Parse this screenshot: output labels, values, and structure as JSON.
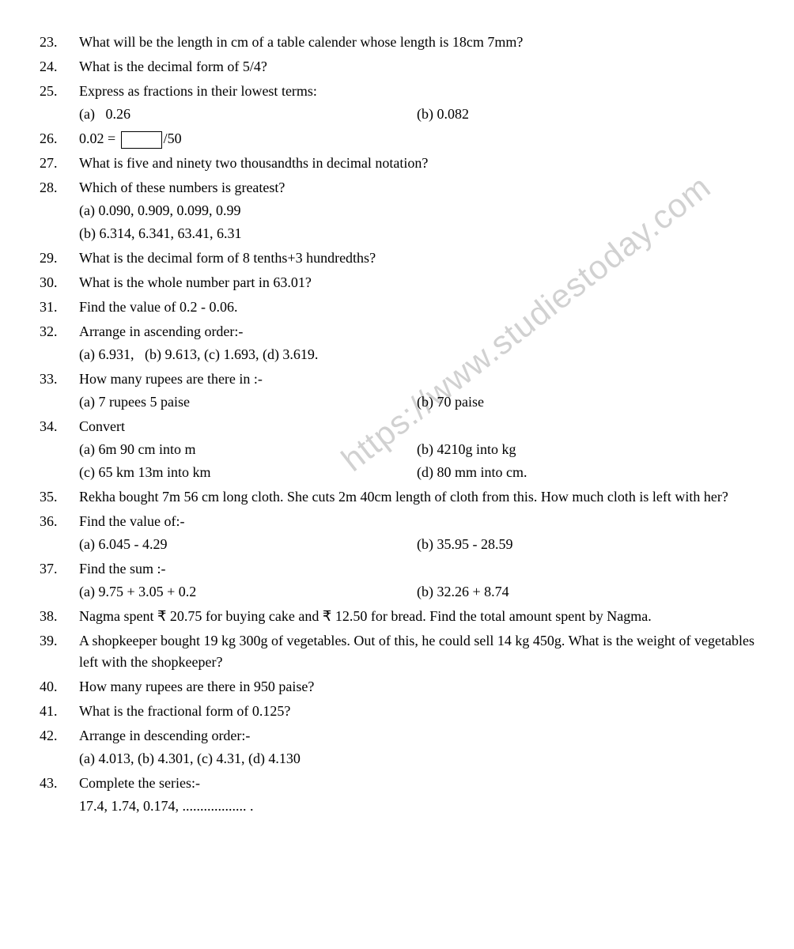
{
  "watermark": "https://www.studiestoday.com",
  "questions": [
    {
      "num": "23.",
      "text": "What will be the length in cm of a table calender whose length is 18cm 7mm?"
    },
    {
      "num": "24.",
      "text": "What is the decimal form of 5/4?"
    },
    {
      "num": "25.",
      "text": "Express as fractions in their lowest terms:",
      "parts_cols": [
        {
          "a": "(a)   0.26",
          "b": "(b) 0.082"
        }
      ]
    },
    {
      "num": "26.",
      "special": "box",
      "pre": "0.02 = ",
      "post": "/50"
    },
    {
      "num": "27.",
      "text": "What is five and ninety two thousandths in decimal notation?"
    },
    {
      "num": "28.",
      "text": "Which of these numbers is greatest?",
      "parts": [
        "(a) 0.090, 0.909, 0.099, 0.99",
        "(b) 6.314, 6.341, 63.41, 6.31"
      ]
    },
    {
      "num": "29.",
      "text": "What is the decimal form of 8 tenths+3 hundredths?"
    },
    {
      "num": "30.",
      "text": "What is the whole number part in 63.01?"
    },
    {
      "num": "31.",
      "text": "Find the value of 0.2 - 0.06."
    },
    {
      "num": "32.",
      "text": "Arrange in ascending order:-",
      "parts": [
        "(a) 6.931,   (b) 9.613, (c) 1.693, (d) 3.619."
      ]
    },
    {
      "num": "33.",
      "text": "How many rupees are there in :-",
      "parts_cols": [
        {
          "a": "(a) 7 rupees 5 paise",
          "b": "(b) 70 paise"
        }
      ]
    },
    {
      "num": "34.",
      "text": "Convert",
      "parts_cols": [
        {
          "a": "(a) 6m 90 cm into m",
          "b": "(b) 4210g into kg"
        },
        {
          "a": "(c) 65 km 13m into km",
          "b": "(d) 80 mm into cm."
        }
      ]
    },
    {
      "num": "35.",
      "text": "Rekha bought 7m 56 cm long cloth. She cuts 2m 40cm length of cloth from this. How much cloth is left with her?"
    },
    {
      "num": "36.",
      "text": "Find the value of:-",
      "parts_cols": [
        {
          "a": "(a) 6.045 - 4.29",
          "b": "(b) 35.95 - 28.59"
        }
      ]
    },
    {
      "num": "37.",
      "text": "Find the sum :-",
      "parts_cols": [
        {
          "a": "(a) 9.75 + 3.05 + 0.2",
          "b": "(b) 32.26 + 8.74"
        }
      ]
    },
    {
      "num": "38.",
      "text": "Nagma spent ₹ 20.75 for buying cake and ₹ 12.50 for bread. Find the total amount spent by Nagma."
    },
    {
      "num": "39.",
      "text": "A shopkeeper bought 19 kg 300g of vegetables. Out of this, he could sell 14 kg 450g. What is the weight of vegetables left with the shopkeeper?"
    },
    {
      "num": "40.",
      "text": "How many rupees are there in 950 paise?"
    },
    {
      "num": "41.",
      "text": "What is the fractional form of 0.125?"
    },
    {
      "num": "42.",
      "text": "Arrange in descending order:-",
      "parts": [
        "(a) 4.013, (b) 4.301, (c) 4.31, (d) 4.130"
      ]
    },
    {
      "num": "43.",
      "text": "Complete the series:-",
      "parts": [
        "17.4, 1.74, 0.174, .................. ."
      ]
    }
  ]
}
